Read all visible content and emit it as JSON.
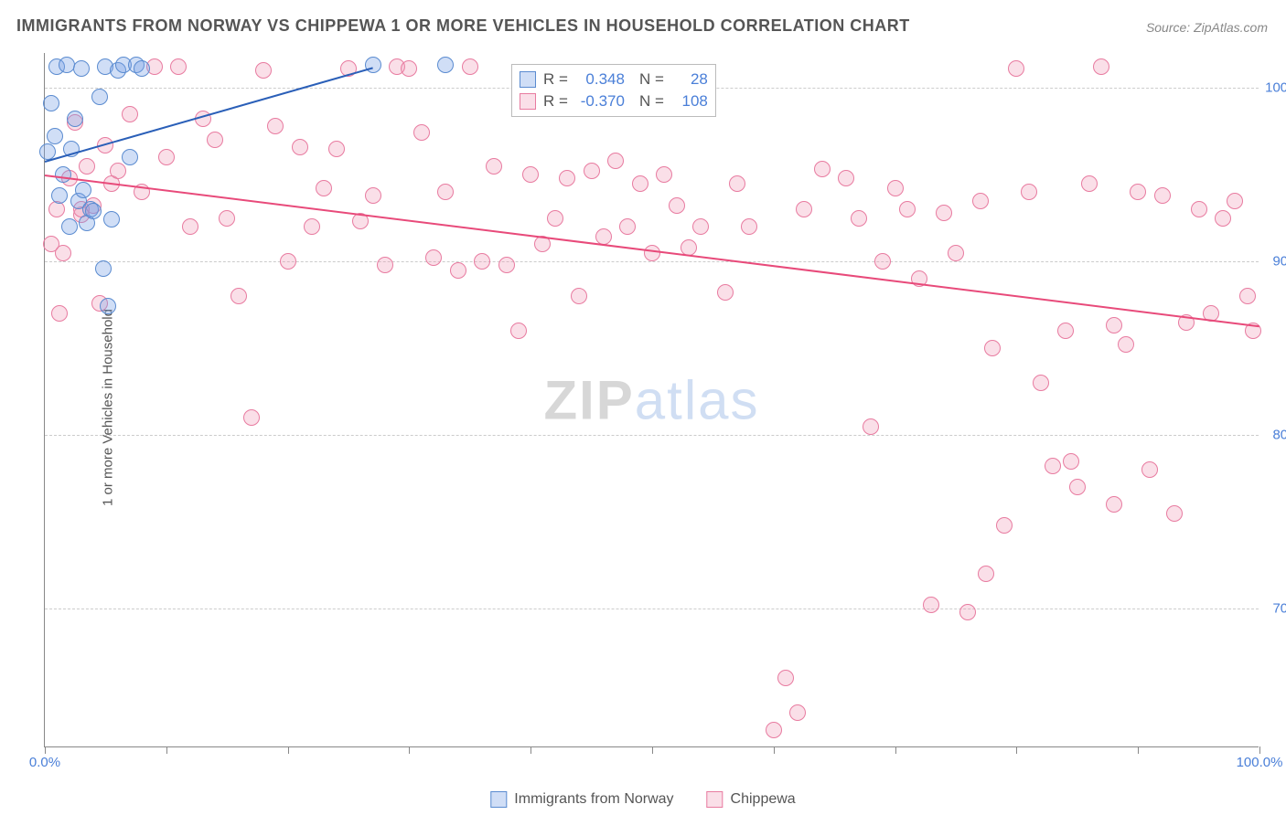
{
  "title": "IMMIGRANTS FROM NORWAY VS CHIPPEWA 1 OR MORE VEHICLES IN HOUSEHOLD CORRELATION CHART",
  "source": "Source: ZipAtlas.com",
  "yaxis_label": "1 or more Vehicles in Household",
  "watermark": {
    "part1": "ZIP",
    "part2": "atlas"
  },
  "chart": {
    "type": "scatter",
    "xlim": [
      0,
      100
    ],
    "ylim": [
      62,
      102
    ],
    "ytick_values": [
      70,
      80,
      90,
      100
    ],
    "ytick_labels": [
      "70.0%",
      "80.0%",
      "90.0%",
      "100.0%"
    ],
    "xtick_values": [
      0,
      100
    ],
    "xtick_labels": [
      "0.0%",
      "100.0%"
    ],
    "xtick_marks": [
      0,
      10,
      20,
      30,
      40,
      50,
      60,
      70,
      80,
      90,
      100
    ],
    "grid_color": "#cccccc",
    "axis_color": "#888888",
    "tick_label_color": "#4a7fd8",
    "background_color": "#ffffff",
    "point_radius": 9,
    "point_stroke_width": 1.2,
    "line_width": 2
  },
  "series": [
    {
      "name": "Immigrants from Norway",
      "fill": "rgba(120,160,230,0.35)",
      "stroke": "#5a8bd0",
      "line_color": "#2a5fb8",
      "R": "0.348",
      "N": "28",
      "trend": {
        "x1": 0,
        "y1": 95.8,
        "x2": 27,
        "y2": 101.2
      },
      "points": [
        [
          0.2,
          96.3
        ],
        [
          0.5,
          99.1
        ],
        [
          0.8,
          97.2
        ],
        [
          1.0,
          101.2
        ],
        [
          1.2,
          93.8
        ],
        [
          1.5,
          95.0
        ],
        [
          1.8,
          101.3
        ],
        [
          2.0,
          92.0
        ],
        [
          2.2,
          96.5
        ],
        [
          2.5,
          98.2
        ],
        [
          2.8,
          93.5
        ],
        [
          3.0,
          101.1
        ],
        [
          3.2,
          94.1
        ],
        [
          3.5,
          92.2
        ],
        [
          3.8,
          93.0
        ],
        [
          4.0,
          92.9
        ],
        [
          4.5,
          99.5
        ],
        [
          5.0,
          101.2
        ],
        [
          5.5,
          92.4
        ],
        [
          6.0,
          101.0
        ],
        [
          6.5,
          101.3
        ],
        [
          7.0,
          96.0
        ],
        [
          7.5,
          101.3
        ],
        [
          8.0,
          101.1
        ],
        [
          4.8,
          89.6
        ],
        [
          5.2,
          87.4
        ],
        [
          27.0,
          101.3
        ],
        [
          33.0,
          101.3
        ]
      ]
    },
    {
      "name": "Chippewa",
      "fill": "rgba(240,150,180,0.3)",
      "stroke": "#e87ba0",
      "line_color": "#e84a7a",
      "R": "-0.370",
      "N": "108",
      "trend": {
        "x1": 0,
        "y1": 95.0,
        "x2": 100,
        "y2": 86.3
      },
      "points": [
        [
          0.5,
          91.0
        ],
        [
          1.0,
          93.0
        ],
        [
          1.5,
          90.5
        ],
        [
          2.0,
          94.8
        ],
        [
          2.5,
          98.0
        ],
        [
          3.0,
          92.7
        ],
        [
          3.5,
          95.5
        ],
        [
          4.0,
          93.2
        ],
        [
          4.5,
          87.6
        ],
        [
          5.0,
          96.7
        ],
        [
          5.5,
          94.5
        ],
        [
          6.0,
          95.2
        ],
        [
          7.0,
          98.5
        ],
        [
          8.0,
          94.0
        ],
        [
          9.0,
          101.2
        ],
        [
          10.0,
          96.0
        ],
        [
          11.0,
          101.2
        ],
        [
          12.0,
          92.0
        ],
        [
          13.0,
          98.2
        ],
        [
          14.0,
          97.0
        ],
        [
          15.0,
          92.5
        ],
        [
          16.0,
          88.0
        ],
        [
          17.0,
          81.0
        ],
        [
          18.0,
          101.0
        ],
        [
          19.0,
          97.8
        ],
        [
          20.0,
          90.0
        ],
        [
          21.0,
          96.6
        ],
        [
          22.0,
          92.0
        ],
        [
          23.0,
          94.2
        ],
        [
          24.0,
          96.5
        ],
        [
          25.0,
          101.1
        ],
        [
          26.0,
          92.3
        ],
        [
          27.0,
          93.8
        ],
        [
          28.0,
          89.8
        ],
        [
          29.0,
          101.2
        ],
        [
          30.0,
          101.1
        ],
        [
          31.0,
          97.4
        ],
        [
          32.0,
          90.2
        ],
        [
          33.0,
          94.0
        ],
        [
          34.0,
          89.5
        ],
        [
          35.0,
          101.2
        ],
        [
          36.0,
          90.0
        ],
        [
          37.0,
          95.5
        ],
        [
          38.0,
          89.8
        ],
        [
          39.0,
          86.0
        ],
        [
          40.0,
          95.0
        ],
        [
          41.0,
          91.0
        ],
        [
          42.0,
          92.5
        ],
        [
          43.0,
          94.8
        ],
        [
          44.0,
          88.0
        ],
        [
          45.0,
          95.2
        ],
        [
          46.0,
          91.4
        ],
        [
          47.0,
          95.8
        ],
        [
          48.0,
          92.0
        ],
        [
          49.0,
          94.5
        ],
        [
          50.0,
          90.5
        ],
        [
          51.0,
          95.0
        ],
        [
          52.0,
          93.2
        ],
        [
          53.0,
          90.8
        ],
        [
          54.0,
          92.0
        ],
        [
          56.0,
          88.2
        ],
        [
          57.0,
          94.5
        ],
        [
          58.0,
          92.0
        ],
        [
          60.0,
          63.0
        ],
        [
          61.0,
          66.0
        ],
        [
          62.0,
          64.0
        ],
        [
          62.5,
          93.0
        ],
        [
          64.0,
          95.3
        ],
        [
          66.0,
          94.8
        ],
        [
          67.0,
          92.5
        ],
        [
          68.0,
          80.5
        ],
        [
          69.0,
          90.0
        ],
        [
          70.0,
          94.2
        ],
        [
          71.0,
          93.0
        ],
        [
          72.0,
          89.0
        ],
        [
          73.0,
          70.2
        ],
        [
          74.0,
          92.8
        ],
        [
          75.0,
          90.5
        ],
        [
          76.0,
          69.8
        ],
        [
          77.0,
          93.5
        ],
        [
          78.0,
          85.0
        ],
        [
          79.0,
          74.8
        ],
        [
          80.0,
          101.1
        ],
        [
          81.0,
          94.0
        ],
        [
          82.0,
          83.0
        ],
        [
          83.0,
          78.2
        ],
        [
          84.0,
          86.0
        ],
        [
          85.0,
          77.0
        ],
        [
          86.0,
          94.5
        ],
        [
          87.0,
          101.2
        ],
        [
          88.0,
          86.3
        ],
        [
          89.0,
          85.2
        ],
        [
          90.0,
          94.0
        ],
        [
          91.0,
          78.0
        ],
        [
          92.0,
          93.8
        ],
        [
          93.0,
          75.5
        ],
        [
          94.0,
          86.5
        ],
        [
          95.0,
          93.0
        ],
        [
          96.0,
          87.0
        ],
        [
          97.0,
          92.5
        ],
        [
          98.0,
          93.5
        ],
        [
          99.0,
          88.0
        ],
        [
          99.5,
          86.0
        ],
        [
          88.0,
          76.0
        ],
        [
          84.5,
          78.5
        ],
        [
          77.5,
          72.0
        ],
        [
          1.2,
          87.0
        ],
        [
          3.0,
          93.0
        ]
      ]
    }
  ],
  "stats_box": {
    "r_label": "R =",
    "n_label": "N ="
  },
  "legend": {
    "items": [
      {
        "label": "Immigrants from Norway",
        "series": 0
      },
      {
        "label": "Chippewa",
        "series": 1
      }
    ]
  }
}
